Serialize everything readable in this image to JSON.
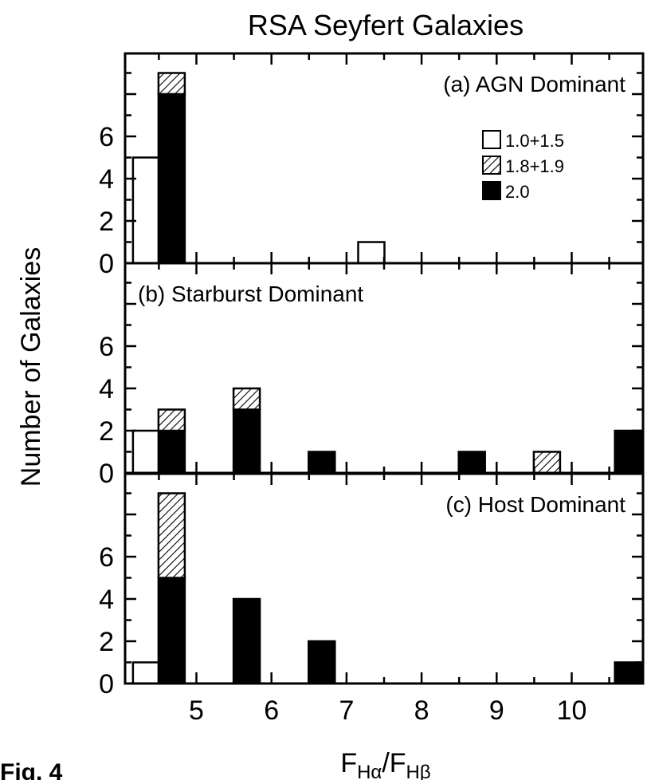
{
  "figure_label": "Fig. 4",
  "chart_data": {
    "type": "bar",
    "stacked": true,
    "title": "RSA Seyfert Galaxies",
    "ylabel": "Number of Galaxies",
    "xlabel": {
      "main": "F",
      "sub1": "Hα",
      "slash": "/F",
      "sub2": "Hβ"
    },
    "xlim": [
      4.05,
      10.95
    ],
    "xticks": [
      5,
      6,
      7,
      8,
      9,
      10
    ],
    "ylim": [
      0,
      9
    ],
    "yticks": [
      0,
      2,
      4,
      6
    ],
    "bar_width": 0.35,
    "legend": {
      "placement": "top-right (panel a)",
      "entries": [
        {
          "key": "t1",
          "label": "1.0+1.5"
        },
        {
          "key": "t18",
          "label": "1.8+1.9"
        },
        {
          "key": "t2",
          "label": "2.0"
        }
      ]
    },
    "panels": [
      {
        "label": "(a) AGN Dominant",
        "bars": [
          {
            "x": 4.33,
            "t1": 5,
            "t18": 0,
            "t2": 0
          },
          {
            "x": 4.67,
            "t1": 0,
            "t18": 1,
            "t2": 8
          },
          {
            "x": 7.33,
            "t1": 1,
            "t18": 0,
            "t2": 0
          }
        ]
      },
      {
        "label": "(b) Starburst Dominant",
        "bars": [
          {
            "x": 4.33,
            "t1": 2,
            "t18": 0,
            "t2": 0
          },
          {
            "x": 4.67,
            "t1": 0,
            "t18": 1,
            "t2": 2
          },
          {
            "x": 5.67,
            "t1": 0,
            "t18": 1,
            "t2": 3
          },
          {
            "x": 6.67,
            "t1": 0,
            "t18": 0,
            "t2": 1
          },
          {
            "x": 8.67,
            "t1": 0,
            "t18": 0,
            "t2": 1
          },
          {
            "x": 9.67,
            "t1": 0,
            "t18": 1,
            "t2": 0
          },
          {
            "x": 10.75,
            "t1": 0,
            "t18": 0,
            "t2": 2
          }
        ]
      },
      {
        "label": "(c) Host Dominant",
        "bars": [
          {
            "x": 4.33,
            "t1": 1,
            "t18": 0,
            "t2": 0
          },
          {
            "x": 4.67,
            "t1": 0,
            "t18": 4,
            "t2": 5
          },
          {
            "x": 5.67,
            "t1": 0,
            "t18": 0,
            "t2": 4
          },
          {
            "x": 6.67,
            "t1": 0,
            "t18": 0,
            "t2": 2
          },
          {
            "x": 10.75,
            "t1": 0,
            "t18": 0,
            "t2": 1
          }
        ]
      }
    ],
    "colors": {
      "t1": "#ffffff",
      "t18": "hatched",
      "t2": "#000000"
    }
  }
}
